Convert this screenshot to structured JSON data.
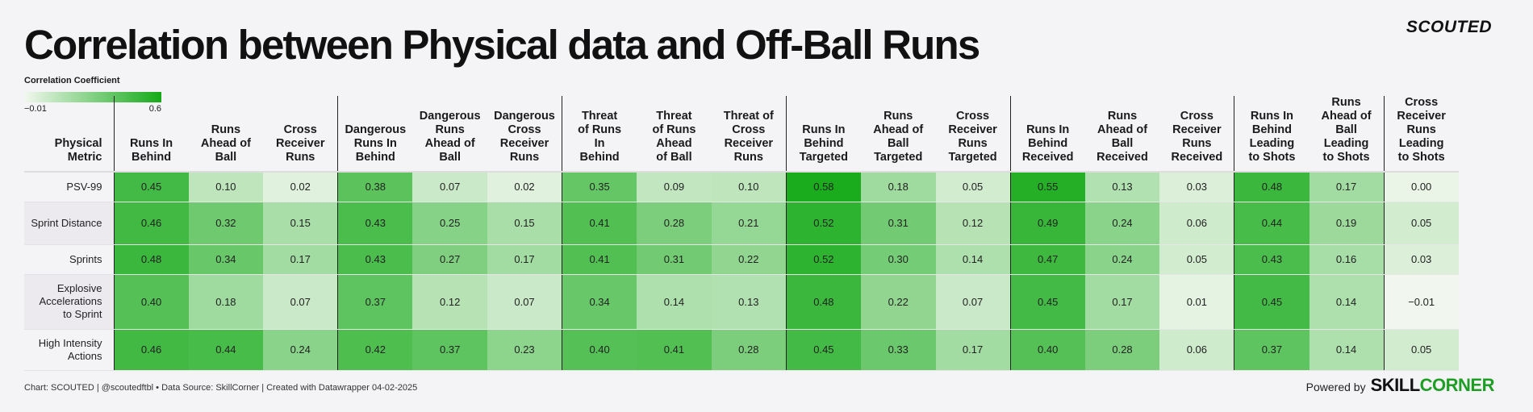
{
  "title": "Correlation between Physical data and Off-Ball Runs",
  "brand": "SCOUTED",
  "legend": {
    "title": "Correlation Coefficient",
    "min_label": "−0.01",
    "max_label": "0.6",
    "min_color": "#f1f7ee",
    "max_color": "#15aa18"
  },
  "footer": {
    "source": "Chart: SCOUTED | @scoutedftbl • Data Source: SkillCorner | Created with Datawrapper 04-02-2025",
    "powered_by": "Powered by",
    "logo_part1": "SKILL",
    "logo_part2": "CORNER"
  },
  "chart_data": {
    "type": "heatmap",
    "title": "Correlation between Physical data and Off-Ball Runs",
    "row_header": "Physical Metric",
    "value_range": [
      -0.01,
      0.6
    ],
    "columns": [
      "Runs In Behind",
      "Runs Ahead of Ball",
      "Cross Receiver Runs",
      "Dangerous Runs In Behind",
      "Dangerous Runs Ahead of Ball",
      "Dangerous Cross Receiver Runs",
      "Threat of Runs In Behind",
      "Threat of Runs Ahead of Ball",
      "Threat of Cross Receiver Runs",
      "Runs In Behind Targeted",
      "Runs Ahead of Ball Targeted",
      "Cross Receiver Runs Targeted",
      "Runs In Behind Received",
      "Runs Ahead of Ball Received",
      "Cross Receiver Runs Received",
      "Runs In Behind Leading to Shots",
      "Runs Ahead of Ball Leading to Shots",
      "Cross Receiver Runs Leading to Shots"
    ],
    "rows": [
      {
        "label": "PSV-99",
        "values": [
          "0.45",
          "0.10",
          "0.02",
          "0.38",
          "0.07",
          "0.02",
          "0.35",
          "0.09",
          "0.10",
          "0.58",
          "0.18",
          "0.05",
          "0.55",
          "0.13",
          "0.03",
          "0.48",
          "0.17",
          "0.00"
        ]
      },
      {
        "label": "Sprint Distance",
        "values": [
          "0.46",
          "0.32",
          "0.15",
          "0.43",
          "0.25",
          "0.15",
          "0.41",
          "0.28",
          "0.21",
          "0.52",
          "0.31",
          "0.12",
          "0.49",
          "0.24",
          "0.06",
          "0.44",
          "0.19",
          "0.05"
        ]
      },
      {
        "label": "Sprints",
        "values": [
          "0.48",
          "0.34",
          "0.17",
          "0.43",
          "0.27",
          "0.17",
          "0.41",
          "0.31",
          "0.22",
          "0.52",
          "0.30",
          "0.14",
          "0.47",
          "0.24",
          "0.05",
          "0.43",
          "0.16",
          "0.03"
        ]
      },
      {
        "label": "Explosive Accelerations to Sprint",
        "values": [
          "0.40",
          "0.18",
          "0.07",
          "0.37",
          "0.12",
          "0.07",
          "0.34",
          "0.14",
          "0.13",
          "0.48",
          "0.22",
          "0.07",
          "0.45",
          "0.17",
          "0.01",
          "0.45",
          "0.14",
          "−0.01"
        ]
      },
      {
        "label": "High Intensity Actions",
        "values": [
          "0.46",
          "0.44",
          "0.24",
          "0.42",
          "0.37",
          "0.23",
          "0.40",
          "0.41",
          "0.28",
          "0.45",
          "0.33",
          "0.17",
          "0.40",
          "0.28",
          "0.06",
          "0.37",
          "0.14",
          "0.05"
        ]
      }
    ]
  }
}
